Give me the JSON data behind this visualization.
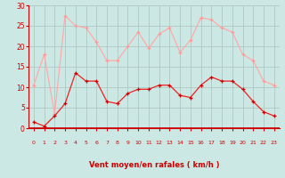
{
  "x": [
    0,
    1,
    2,
    3,
    4,
    5,
    6,
    7,
    8,
    9,
    10,
    11,
    12,
    13,
    14,
    15,
    16,
    17,
    18,
    19,
    20,
    21,
    22,
    23
  ],
  "wind_avg": [
    1.5,
    0.5,
    3.0,
    6.0,
    13.5,
    11.5,
    11.5,
    6.5,
    6.0,
    8.5,
    9.5,
    9.5,
    10.5,
    10.5,
    8.0,
    7.5,
    10.5,
    12.5,
    11.5,
    11.5,
    9.5,
    6.5,
    4.0,
    3.0
  ],
  "wind_gust": [
    10.5,
    18.0,
    3.5,
    27.5,
    25.0,
    24.5,
    21.0,
    16.5,
    16.5,
    20.0,
    23.5,
    19.5,
    23.0,
    24.5,
    18.5,
    21.5,
    27.0,
    26.5,
    24.5,
    23.5,
    18.0,
    16.5,
    11.5,
    10.5
  ],
  "wind_dirs": [
    "→",
    "→",
    "↘",
    "↓",
    "→",
    "→",
    "↘",
    "→",
    "→",
    "↘",
    "↓",
    "↘",
    "↓",
    "↘",
    "→",
    "↓",
    "↘",
    "→",
    "↘",
    "→",
    "→",
    "→",
    "→",
    "→"
  ],
  "xlabel": "Vent moyen/en rafales ( km/h )",
  "ylim": [
    0,
    30
  ],
  "yticks": [
    0,
    5,
    10,
    15,
    20,
    25,
    30
  ],
  "bg_color": "#cce8e4",
  "grid_color": "#b0c8c4",
  "line_avg_color": "#ee2222",
  "line_gust_color": "#ffaaaa",
  "marker_color_avg": "#cc0000",
  "marker_color_gust": "#ff9999",
  "tick_color": "#cc0000",
  "xlabel_color": "#cc0000"
}
